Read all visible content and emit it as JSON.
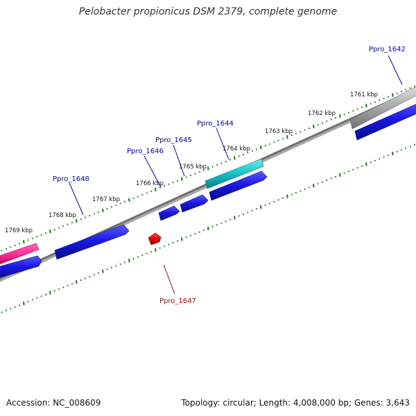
{
  "title": "Pelobacter propionicus DSM 2379, complete genome",
  "footer": {
    "accession": "Accession: NC_008609",
    "summary": "Topology: circular; Length: 4,008,000 bp; Genes: 3,643"
  },
  "ruler": [
    {
      "label": "1761 kbp"
    },
    {
      "label": "1762 kbp"
    },
    {
      "label": "1763 kbp"
    },
    {
      "label": "1764 kbp"
    },
    {
      "label": "1765 kbp"
    },
    {
      "label": "1766 kbp"
    },
    {
      "label": "1767 kbp"
    },
    {
      "label": "1768 kbp"
    },
    {
      "label": "1769 kbp"
    }
  ],
  "gene_labels": [
    {
      "name": "Ppro_1642",
      "color": "#0000cc"
    },
    {
      "name": "Ppro_1644",
      "color": "#0000cc"
    },
    {
      "name": "Ppro_1645",
      "color": "#0000cc"
    },
    {
      "name": "Ppro_1646",
      "color": "#0000cc"
    },
    {
      "name": "Ppro_1648",
      "color": "#0000cc"
    },
    {
      "name": "Ppro_1647",
      "color": "#cc0000"
    }
  ],
  "colors": {
    "backbone": "#7a7a7a",
    "tick": "#1a7a1a",
    "cds": "#1a1ae6",
    "rna_pink": "#ff3399",
    "rna_cyan": "#19c8cc",
    "pseudo_gray": "#b0b0b0",
    "reverse_red": "#e60000"
  }
}
